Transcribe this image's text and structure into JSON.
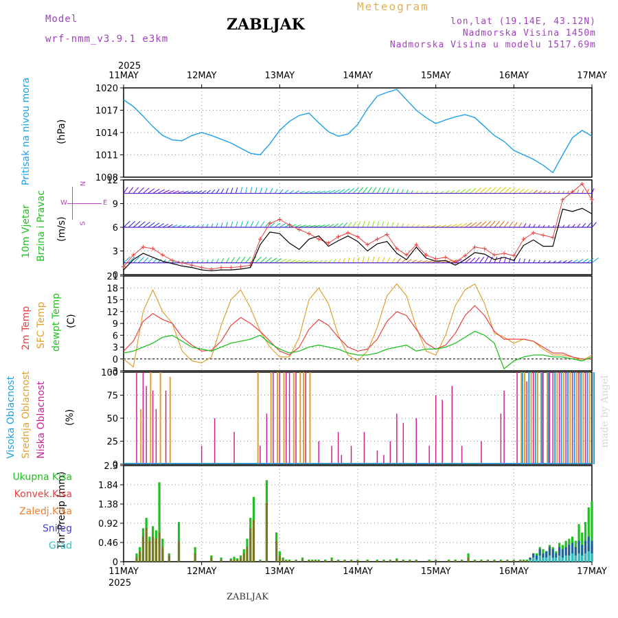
{
  "header": {
    "model_label": "Model",
    "model_name": "wrf-nmm_v3.9.1 e3km",
    "station": "ZABLJAK",
    "meteogram": "Meteogram",
    "lonlat": "lon,lat (19.14E, 43.12N)",
    "altitude": "Nadmorska Visina 1450m",
    "model_altitude": "Nadmorska Visina u modelu 1517.69m"
  },
  "time_axis": {
    "year": "2025",
    "dates": [
      "11MAY",
      "12MAY",
      "13MAY",
      "14MAY",
      "15MAY",
      "16MAY",
      "17MAY"
    ]
  },
  "footer": {
    "station": "ZABLJAK",
    "credit": "made by Angel"
  },
  "colors": {
    "pressure": "#1aa0e8",
    "temp2m": "#e84040",
    "sfc": "#e0a030",
    "dew": "#20c020",
    "high": "#20a0e0",
    "mid": "#e0a030",
    "low": "#d02090",
    "precip": "#20c020",
    "conv": "#e84040",
    "snow": "#4040d0",
    "grad": "#30c0c0",
    "wind_speed": "#e84040",
    "wind_obs": "#000000"
  },
  "chart_data": [
    {
      "id": "pressure",
      "type": "line",
      "ylabel_main": "Pritisak na nivou mora",
      "unit": "(hPa)",
      "ylim": [
        1008,
        1020
      ],
      "yticks": [
        "1008",
        "1011",
        "1014",
        "1017",
        "1020"
      ],
      "x_hours": [
        0,
        3,
        6,
        9,
        12,
        15,
        18,
        21,
        24,
        27,
        30,
        33,
        36,
        39,
        42,
        45,
        48,
        51,
        54,
        57,
        60,
        63,
        66,
        69,
        72,
        75,
        78,
        81,
        84,
        87,
        90,
        93,
        96,
        99,
        102,
        105,
        108,
        111,
        114,
        117,
        120,
        123,
        126,
        129,
        132,
        135,
        138,
        141,
        144
      ],
      "values": [
        1018.4,
        1017.5,
        1016.2,
        1014.8,
        1013.6,
        1013.0,
        1012.9,
        1013.6,
        1014.0,
        1013.6,
        1013.1,
        1012.6,
        1011.9,
        1011.2,
        1011.0,
        1012.5,
        1014.3,
        1015.5,
        1016.3,
        1016.6,
        1015.3,
        1014.1,
        1013.5,
        1013.8,
        1015.1,
        1017.2,
        1018.9,
        1019.4,
        1019.8,
        1018.4,
        1017.0,
        1016.0,
        1015.2,
        1015.7,
        1016.1,
        1016.4,
        1016.0,
        1014.8,
        1013.6,
        1012.8,
        1011.6,
        1011.0,
        1010.4,
        1009.6,
        1008.6,
        1011.0,
        1013.3,
        1014.3,
        1013.5
      ]
    },
    {
      "id": "wind",
      "type": "line",
      "ylabel_main": "10m Vjetar",
      "ylabel_sub": "Brzina i Pravac",
      "unit": "(m/s)",
      "compass": {
        "n": "N",
        "e": "E",
        "w": "W",
        "s": "S"
      },
      "ylim": [
        0,
        12
      ],
      "yticks": [
        "0",
        "3",
        "6",
        "9",
        "12"
      ],
      "x_hours": [
        0,
        3,
        6,
        9,
        12,
        15,
        18,
        21,
        24,
        27,
        30,
        33,
        36,
        39,
        42,
        45,
        48,
        51,
        54,
        57,
        60,
        63,
        66,
        69,
        72,
        75,
        78,
        81,
        84,
        87,
        90,
        93,
        96,
        99,
        102,
        105,
        108,
        111,
        114,
        117,
        120,
        123,
        126,
        129,
        132,
        135,
        138,
        141,
        144
      ],
      "speed_max": [
        1.0,
        2.5,
        3.5,
        3.3,
        2.5,
        1.8,
        1.5,
        1.2,
        0.9,
        0.7,
        0.9,
        0.9,
        1.0,
        1.2,
        4.5,
        6.5,
        7.0,
        6.3,
        5.7,
        5.2,
        4.5,
        4.0,
        4.8,
        5.3,
        4.8,
        3.8,
        4.5,
        5.1,
        3.3,
        2.5,
        3.8,
        2.5,
        2.0,
        2.2,
        1.6,
        2.4,
        3.5,
        3.3,
        2.5,
        2.7,
        2.4,
        4.5,
        5.3,
        5.0,
        4.7,
        9.5,
        10.5,
        11.5,
        9.5
      ],
      "speed_mean": [
        0.6,
        1.9,
        2.7,
        2.2,
        1.7,
        1.4,
        1.1,
        0.9,
        0.6,
        0.5,
        0.6,
        0.6,
        0.7,
        0.9,
        3.8,
        5.4,
        5.2,
        4.0,
        3.2,
        4.5,
        4.9,
        3.6,
        4.3,
        4.9,
        4.2,
        3.0,
        3.9,
        4.2,
        2.7,
        1.9,
        3.5,
        2.1,
        1.7,
        1.8,
        1.2,
        1.9,
        2.8,
        2.6,
        1.9,
        2.2,
        1.8,
        3.7,
        4.4,
        3.6,
        3.6,
        8.3,
        8.0,
        8.4,
        7.7
      ],
      "barb_levels_ms": [
        10.3,
        6.0,
        1.5
      ],
      "barb_colors": [
        "#7000e0",
        "#2020e0",
        "#00a0e0",
        "#00c0a0",
        "#00d040",
        "#80e000",
        "#e0c000",
        "#e06000"
      ]
    },
    {
      "id": "temperature",
      "type": "line",
      "ylabel": {
        "t2m": "2m Temp",
        "sfc": "SFC Temp",
        "dew": "dewpt Temp"
      },
      "unit": "(C)",
      "ylim": [
        -3,
        21
      ],
      "yticks": [
        "-3",
        "0",
        "3",
        "6",
        "9",
        "12",
        "15",
        "18",
        "21"
      ],
      "x_hours": [
        0,
        3,
        6,
        9,
        12,
        15,
        18,
        21,
        24,
        27,
        30,
        33,
        36,
        39,
        42,
        45,
        48,
        51,
        54,
        57,
        60,
        63,
        66,
        69,
        72,
        75,
        78,
        81,
        84,
        87,
        90,
        93,
        96,
        99,
        102,
        105,
        108,
        111,
        114,
        117,
        120,
        123,
        126,
        129,
        132,
        135,
        138,
        141,
        144
      ],
      "t2m": [
        2.0,
        4.5,
        9.5,
        11.5,
        10.0,
        9.0,
        5.5,
        3.5,
        2.0,
        2.2,
        4.5,
        8.5,
        10.5,
        9.0,
        7.0,
        4.5,
        2.0,
        1.0,
        3.0,
        7.5,
        10.0,
        8.5,
        5.5,
        3.0,
        2.0,
        2.5,
        5.0,
        9.5,
        12.0,
        11.0,
        7.5,
        4.0,
        2.5,
        3.5,
        6.5,
        11.0,
        13.5,
        11.0,
        7.0,
        5.0,
        5.0,
        5.0,
        4.5,
        3.0,
        1.5,
        1.5,
        0.5,
        0.0,
        0.0
      ],
      "sfc": [
        0.0,
        -2.0,
        12.0,
        17.5,
        12.0,
        9.0,
        2.0,
        -0.5,
        -1.0,
        0.5,
        8.5,
        15.0,
        17.5,
        13.0,
        7.0,
        3.0,
        0.5,
        0.5,
        5.5,
        15.0,
        18.0,
        14.0,
        6.0,
        1.0,
        -0.5,
        2.0,
        8.0,
        16.0,
        19.0,
        16.0,
        8.0,
        2.0,
        1.0,
        6.0,
        13.5,
        17.5,
        19.0,
        14.0,
        6.5,
        5.5,
        4.0,
        5.0,
        4.5,
        2.5,
        1.0,
        1.0,
        0.5,
        -0.5,
        1.0
      ],
      "dew": [
        1.5,
        2.0,
        3.0,
        4.0,
        5.5,
        6.0,
        4.5,
        3.0,
        2.5,
        2.0,
        3.0,
        4.0,
        4.5,
        5.0,
        6.0,
        4.0,
        2.5,
        1.5,
        2.0,
        3.0,
        3.5,
        3.0,
        2.5,
        1.5,
        1.0,
        1.0,
        1.5,
        2.5,
        3.0,
        3.5,
        2.0,
        2.5,
        2.5,
        3.0,
        4.0,
        5.5,
        7.0,
        6.0,
        4.0,
        -2.5,
        -0.5,
        0.5,
        1.0,
        1.0,
        0.5,
        0.5,
        0.0,
        -0.5,
        0.5
      ]
    },
    {
      "id": "clouds",
      "type": "bar",
      "ylabel": {
        "high": "Visoka Oblacnost",
        "mid": "Srednja Oblacnost",
        "low": "Niska Oblacnost"
      },
      "unit": "(%)",
      "ylim": [
        0,
        100
      ],
      "yticks": [
        "0",
        "25",
        "50",
        "75",
        "100"
      ],
      "low_hours": [
        4,
        6,
        7,
        9,
        10,
        13,
        24,
        28,
        34,
        42,
        44,
        46,
        48,
        50,
        51,
        53,
        56,
        60,
        64,
        66,
        67,
        70,
        74,
        78,
        80,
        82,
        84,
        86,
        90,
        94,
        96,
        98,
        101,
        104,
        110,
        116,
        117,
        121,
        124,
        126,
        129,
        131,
        132,
        134,
        136,
        138,
        140,
        142
      ],
      "low_values": [
        100,
        100,
        85,
        80,
        60,
        80,
        20,
        50,
        35,
        20,
        55,
        100,
        100,
        100,
        100,
        100,
        100,
        25,
        20,
        35,
        10,
        20,
        35,
        15,
        10,
        25,
        55,
        45,
        50,
        20,
        75,
        70,
        85,
        20,
        25,
        55,
        80,
        100,
        90,
        100,
        100,
        100,
        100,
        100,
        100,
        100,
        100,
        100
      ],
      "mid_hours": [
        5,
        8,
        11,
        14,
        41,
        45,
        47,
        49,
        52,
        54,
        55,
        57,
        122,
        123,
        125,
        127,
        128,
        130,
        133,
        135,
        137,
        139,
        141,
        143
      ],
      "mid_values": [
        60,
        100,
        100,
        95,
        100,
        100,
        100,
        100,
        100,
        100,
        100,
        100,
        100,
        100,
        100,
        100,
        100,
        100,
        100,
        100,
        100,
        100,
        100,
        100
      ],
      "high_hours": [
        122,
        124,
        126,
        128,
        130,
        132,
        134,
        136,
        138,
        140,
        142,
        144
      ],
      "high_values": [
        100,
        100,
        100,
        100,
        100,
        100,
        100,
        100,
        100,
        100,
        100,
        100
      ]
    },
    {
      "id": "precip",
      "type": "bar",
      "ylabel": "1hr Precip (mm)",
      "legend": [
        "Ukupna Kisa",
        "Konvek.Kisa",
        "Zaledj.Kisa",
        "Snijeg",
        "Grad"
      ],
      "ylim": [
        0,
        2.3
      ],
      "yticks": [
        "0",
        "0.46",
        "0.92",
        "1.38",
        "1.84",
        "2.3"
      ],
      "hours": [
        4,
        5,
        6,
        7,
        8,
        9,
        10,
        11,
        12,
        14,
        17,
        22,
        27,
        30,
        33,
        34,
        35,
        36,
        37,
        38,
        39,
        40,
        42,
        44,
        47,
        48,
        49,
        50,
        51,
        53,
        55,
        57,
        58,
        59,
        60,
        62,
        64,
        66,
        68,
        70,
        72,
        75,
        78,
        80,
        82,
        84,
        86,
        88,
        90,
        94,
        96,
        100,
        102,
        104,
        106,
        108,
        110,
        112,
        114,
        116,
        118,
        120,
        122,
        123,
        124,
        125,
        126,
        127,
        128,
        129,
        130,
        131,
        132,
        133,
        134,
        135,
        136,
        137,
        138,
        139,
        140,
        141,
        142,
        143,
        144
      ],
      "total": [
        0.2,
        0.35,
        0.8,
        1.05,
        0.6,
        0.85,
        0.75,
        1.9,
        0.55,
        0.2,
        0.95,
        0.35,
        0.15,
        0.1,
        0.08,
        0.12,
        0.08,
        0.15,
        0.3,
        0.55,
        1.05,
        1.55,
        0.05,
        1.95,
        0.7,
        0.25,
        0.1,
        0.05,
        0.05,
        0.05,
        0.1,
        0.05,
        0.05,
        0.05,
        0.05,
        0.05,
        0.1,
        0.05,
        0.05,
        0.05,
        0.05,
        0.05,
        0.05,
        0.05,
        0.05,
        0.08,
        0.05,
        0.05,
        0.05,
        0.05,
        0.05,
        0.05,
        0.05,
        0.05,
        0.2,
        0.05,
        0.05,
        0.05,
        0.05,
        0.05,
        0.05,
        0.05,
        0.05,
        0.05,
        0.05,
        0.1,
        0.2,
        0.2,
        0.35,
        0.3,
        0.25,
        0.4,
        0.35,
        0.25,
        0.45,
        0.4,
        0.5,
        0.55,
        0.6,
        0.5,
        0.9,
        0.7,
        0.95,
        1.3,
        1.45
      ],
      "convective": [
        0.1,
        0.25,
        0.6,
        0.8,
        0.5,
        0.6,
        0.55,
        0.7,
        0.35,
        0.15,
        0.5,
        0.2,
        0.1,
        0.05,
        0.05,
        0.05,
        0.05,
        0.1,
        0.2,
        0.35,
        0.8,
        1.0,
        0.03,
        1.4,
        0.5,
        0.15,
        0.05,
        0.03,
        0.03,
        0.03,
        0.05,
        0.03,
        0.03,
        0.03,
        0.03,
        0.03,
        0.05,
        0.03,
        0.03,
        0.03,
        0.03,
        0.03,
        0.03,
        0.03,
        0.03,
        0.05,
        0.03,
        0.03,
        0.03,
        0.03,
        0.03,
        0.03,
        0.03,
        0.03,
        0.1,
        0.03,
        0.03,
        0.03,
        0.03,
        0.03,
        0.03,
        0.03,
        0.03,
        0.03,
        0.03,
        0.05,
        0.1,
        0.1,
        0.15,
        0.15,
        0.1,
        0.15,
        0.15,
        0.1,
        0.2,
        0.15,
        0.2,
        0.25,
        0.25,
        0.2,
        0.3,
        0.25,
        0.3,
        0.35,
        0.4
      ],
      "snow": [
        0,
        0,
        0,
        0,
        0,
        0,
        0,
        0,
        0,
        0,
        0,
        0,
        0,
        0,
        0,
        0,
        0,
        0,
        0,
        0,
        0,
        0,
        0,
        0,
        0,
        0,
        0,
        0,
        0,
        0,
        0,
        0,
        0,
        0,
        0,
        0,
        0,
        0,
        0,
        0,
        0,
        0,
        0,
        0,
        0,
        0,
        0,
        0,
        0,
        0,
        0,
        0,
        0,
        0,
        0,
        0,
        0,
        0,
        0,
        0,
        0,
        0,
        0,
        0,
        0,
        0.1,
        0.2,
        0.15,
        0.3,
        0.2,
        0.25,
        0.35,
        0.3,
        0.2,
        0.35,
        0.3,
        0.35,
        0.4,
        0.45,
        0.35,
        0.5,
        0.4,
        0.5,
        0.6,
        0.5
      ],
      "grad": [
        0,
        0,
        0,
        0,
        0,
        0,
        0,
        0,
        0,
        0,
        0,
        0,
        0,
        0,
        0,
        0,
        0,
        0,
        0,
        0,
        0,
        0,
        0,
        0,
        0,
        0,
        0,
        0,
        0,
        0,
        0,
        0,
        0,
        0,
        0,
        0,
        0,
        0,
        0,
        0,
        0,
        0,
        0,
        0,
        0,
        0,
        0,
        0,
        0,
        0,
        0,
        0,
        0,
        0,
        0,
        0,
        0,
        0,
        0,
        0,
        0,
        0,
        0,
        0,
        0,
        0.05,
        0.1,
        0.05,
        0.15,
        0.1,
        0.1,
        0.15,
        0.1,
        0.1,
        0.15,
        0.1,
        0.15,
        0.15,
        0.2,
        0.15,
        0.2,
        0.15,
        0.2,
        0.25,
        0.2
      ]
    }
  ]
}
